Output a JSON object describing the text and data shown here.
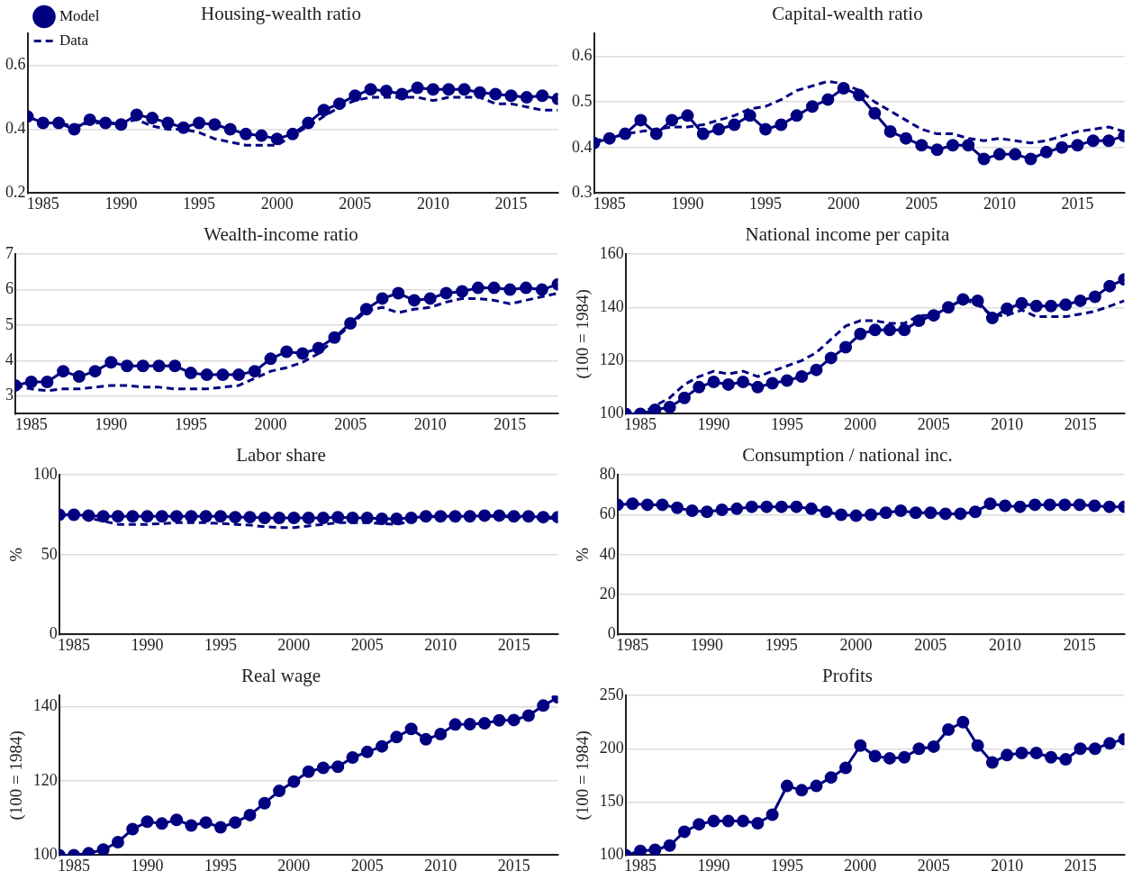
{
  "chart_data": [
    {
      "type": "line",
      "title": "Housing-wealth ratio",
      "x": [
        1984,
        1985,
        1986,
        1987,
        1988,
        1989,
        1990,
        1991,
        1992,
        1993,
        1994,
        1995,
        1996,
        1997,
        1998,
        1999,
        2000,
        2001,
        2002,
        2003,
        2004,
        2005,
        2006,
        2007,
        2008,
        2009,
        2010,
        2011,
        2012,
        2013,
        2014,
        2015,
        2016,
        2017,
        2018
      ],
      "xlim": [
        1984,
        2018
      ],
      "xticks": [
        1985,
        1990,
        1995,
        2000,
        2005,
        2010,
        2015
      ],
      "ylim": [
        0.2,
        0.7
      ],
      "yticks": [
        0.2,
        0.4,
        0.6
      ],
      "grid": "y",
      "legend": "top left",
      "series": [
        {
          "name": "Model",
          "color": "#000080",
          "marker": "circle",
          "line_style": "solid",
          "values": [
            0.44,
            0.42,
            0.42,
            0.4,
            0.43,
            0.42,
            0.415,
            0.445,
            0.435,
            0.42,
            0.405,
            0.42,
            0.415,
            0.4,
            0.385,
            0.38,
            0.37,
            0.385,
            0.42,
            0.46,
            0.48,
            0.505,
            0.525,
            0.52,
            0.51,
            0.53,
            0.525,
            0.525,
            0.525,
            0.515,
            0.51,
            0.505,
            0.5,
            0.505,
            0.495
          ]
        },
        {
          "name": "Data",
          "color": "#000080",
          "marker": "none",
          "line_style": "dashed",
          "values": [
            0.44,
            0.42,
            0.42,
            0.41,
            0.42,
            0.42,
            0.42,
            0.43,
            0.41,
            0.4,
            0.4,
            0.39,
            0.37,
            0.36,
            0.35,
            0.35,
            0.35,
            0.38,
            0.41,
            0.44,
            0.47,
            0.49,
            0.5,
            0.5,
            0.5,
            0.5,
            0.49,
            0.5,
            0.5,
            0.5,
            0.48,
            0.48,
            0.47,
            0.46,
            0.46
          ]
        }
      ]
    },
    {
      "type": "line",
      "title": "Capital-wealth ratio",
      "x": [
        1984,
        1985,
        1986,
        1987,
        1988,
        1989,
        1990,
        1991,
        1992,
        1993,
        1994,
        1995,
        1996,
        1997,
        1998,
        1999,
        2000,
        2001,
        2002,
        2003,
        2004,
        2005,
        2006,
        2007,
        2008,
        2009,
        2010,
        2011,
        2012,
        2013,
        2014,
        2015,
        2016,
        2017,
        2018
      ],
      "xlim": [
        1984,
        2018
      ],
      "xticks": [
        1985,
        1990,
        1995,
        2000,
        2005,
        2010,
        2015
      ],
      "ylim": [
        0.3,
        0.65
      ],
      "yticks": [
        0.3,
        0.4,
        0.5,
        0.6
      ],
      "grid": "y",
      "series": [
        {
          "color": "#000080",
          "marker": "circle",
          "line_style": "solid",
          "values": [
            0.41,
            0.42,
            0.43,
            0.46,
            0.43,
            0.46,
            0.47,
            0.43,
            0.44,
            0.45,
            0.47,
            0.44,
            0.45,
            0.47,
            0.49,
            0.505,
            0.53,
            0.515,
            0.475,
            0.435,
            0.42,
            0.405,
            0.395,
            0.405,
            0.405,
            0.375,
            0.385,
            0.385,
            0.375,
            0.39,
            0.4,
            0.405,
            0.415,
            0.415,
            0.425
          ]
        },
        {
          "color": "#000080",
          "marker": "none",
          "line_style": "dashed",
          "values": [
            0.415,
            0.42,
            0.43,
            0.435,
            0.44,
            0.445,
            0.445,
            0.45,
            0.46,
            0.47,
            0.485,
            0.49,
            0.505,
            0.525,
            0.535,
            0.545,
            0.54,
            0.525,
            0.5,
            0.48,
            0.46,
            0.44,
            0.43,
            0.43,
            0.42,
            0.415,
            0.42,
            0.415,
            0.41,
            0.415,
            0.425,
            0.435,
            0.44,
            0.445,
            0.435
          ]
        }
      ]
    },
    {
      "type": "line",
      "title": "Wealth-income ratio",
      "x": [
        1984,
        1985,
        1986,
        1987,
        1988,
        1989,
        1990,
        1991,
        1992,
        1993,
        1994,
        1995,
        1996,
        1997,
        1998,
        1999,
        2000,
        2001,
        2002,
        2003,
        2004,
        2005,
        2006,
        2007,
        2008,
        2009,
        2010,
        2011,
        2012,
        2013,
        2014,
        2015,
        2016,
        2017,
        2018
      ],
      "xlim": [
        1984,
        2018
      ],
      "xticks": [
        1985,
        1990,
        1995,
        2000,
        2005,
        2010,
        2015
      ],
      "ylim": [
        2.5,
        7
      ],
      "yticks": [
        3,
        4,
        5,
        6,
        7
      ],
      "grid": "y",
      "series": [
        {
          "color": "#000080",
          "marker": "circle",
          "line_style": "solid",
          "values": [
            3.3,
            3.4,
            3.4,
            3.7,
            3.55,
            3.7,
            3.95,
            3.85,
            3.85,
            3.85,
            3.85,
            3.65,
            3.6,
            3.6,
            3.6,
            3.7,
            4.05,
            4.25,
            4.2,
            4.35,
            4.65,
            5.05,
            5.45,
            5.75,
            5.9,
            5.7,
            5.75,
            5.9,
            5.95,
            6.05,
            6.05,
            6.0,
            6.05,
            6.0,
            6.15
          ]
        },
        {
          "color": "#000080",
          "marker": "none",
          "line_style": "dashed",
          "values": [
            3.3,
            3.2,
            3.15,
            3.2,
            3.2,
            3.25,
            3.3,
            3.3,
            3.25,
            3.25,
            3.2,
            3.2,
            3.2,
            3.25,
            3.3,
            3.5,
            3.7,
            3.8,
            3.95,
            4.2,
            4.6,
            5.0,
            5.4,
            5.5,
            5.35,
            5.45,
            5.5,
            5.65,
            5.75,
            5.75,
            5.7,
            5.6,
            5.7,
            5.8,
            5.9
          ]
        }
      ]
    },
    {
      "type": "line",
      "title": "National income per capita",
      "ylabel": "(100 = 1984)",
      "x": [
        1984,
        1985,
        1986,
        1987,
        1988,
        1989,
        1990,
        1991,
        1992,
        1993,
        1994,
        1995,
        1996,
        1997,
        1998,
        1999,
        2000,
        2001,
        2002,
        2003,
        2004,
        2005,
        2006,
        2007,
        2008,
        2009,
        2010,
        2011,
        2012,
        2013,
        2014,
        2015,
        2016,
        2017,
        2018
      ],
      "xlim": [
        1984,
        2018
      ],
      "xticks": [
        1985,
        1990,
        1995,
        2000,
        2005,
        2010,
        2015
      ],
      "ylim": [
        100,
        160
      ],
      "yticks": [
        100,
        120,
        140,
        160
      ],
      "grid": "y",
      "series": [
        {
          "color": "#000080",
          "marker": "circle",
          "line_style": "solid",
          "values": [
            100,
            100,
            101.5,
            102.5,
            106,
            110,
            112,
            111,
            112,
            110,
            111.5,
            112.5,
            114,
            116.5,
            121,
            125,
            130,
            131.5,
            131.5,
            131.5,
            135,
            137,
            140,
            143,
            142.5,
            136,
            139.5,
            141.5,
            140.5,
            140.5,
            141,
            142.5,
            144,
            148,
            150.5
          ]
        },
        {
          "color": "#000080",
          "marker": "none",
          "line_style": "dashed",
          "values": [
            100,
            100,
            103,
            106,
            111,
            114,
            116,
            115,
            116,
            114,
            116,
            118,
            120,
            123,
            128,
            133,
            135,
            135,
            134,
            134,
            137,
            137,
            140,
            143,
            141,
            137,
            137,
            139,
            136.5,
            136.5,
            136.5,
            137.5,
            138.5,
            140.5,
            142.5
          ]
        }
      ]
    },
    {
      "type": "line",
      "title": "Labor share",
      "ylabel": "%",
      "x": [
        1984,
        1985,
        1986,
        1987,
        1988,
        1989,
        1990,
        1991,
        1992,
        1993,
        1994,
        1995,
        1996,
        1997,
        1998,
        1999,
        2000,
        2001,
        2002,
        2003,
        2004,
        2005,
        2006,
        2007,
        2008,
        2009,
        2010,
        2011,
        2012,
        2013,
        2014,
        2015,
        2016,
        2017,
        2018
      ],
      "xlim": [
        1984,
        2018
      ],
      "xticks": [
        1985,
        1990,
        1995,
        2000,
        2005,
        2010,
        2015
      ],
      "ylim": [
        0,
        100
      ],
      "yticks": [
        0,
        50,
        100
      ],
      "grid": "y",
      "series": [
        {
          "color": "#000080",
          "marker": "circle",
          "line_style": "solid",
          "values": [
            75,
            75,
            74.5,
            74,
            74,
            74,
            74,
            74,
            74,
            74,
            74,
            74,
            73.5,
            73.5,
            73,
            73,
            73,
            73,
            73,
            73.5,
            73,
            73,
            72.5,
            72.5,
            73,
            74,
            74,
            74,
            74,
            74.5,
            74.5,
            74,
            74,
            73.5,
            73.5
          ]
        },
        {
          "color": "#000080",
          "marker": "none",
          "line_style": "dashed",
          "values": [
            75,
            74,
            73,
            71,
            69,
            69,
            69,
            69.5,
            70,
            70,
            70,
            69.5,
            69,
            68.5,
            67.5,
            67,
            67,
            68,
            69,
            70,
            70,
            70,
            69.5,
            69,
            71,
            73.5,
            74,
            74,
            74,
            74,
            74,
            73.5,
            73,
            72.5,
            73
          ]
        }
      ]
    },
    {
      "type": "line",
      "title": "Consumption / national inc.",
      "ylabel": "%",
      "x": [
        1984,
        1985,
        1986,
        1987,
        1988,
        1989,
        1990,
        1991,
        1992,
        1993,
        1994,
        1995,
        1996,
        1997,
        1998,
        1999,
        2000,
        2001,
        2002,
        2003,
        2004,
        2005,
        2006,
        2007,
        2008,
        2009,
        2010,
        2011,
        2012,
        2013,
        2014,
        2015,
        2016,
        2017,
        2018
      ],
      "xlim": [
        1984,
        2018
      ],
      "xticks": [
        1985,
        1990,
        1995,
        2000,
        2005,
        2010,
        2015
      ],
      "ylim": [
        0,
        80
      ],
      "yticks": [
        0,
        20,
        40,
        60,
        80
      ],
      "grid": "y",
      "series": [
        {
          "color": "#000080",
          "marker": "circle",
          "line_style": "solid",
          "values": [
            65,
            65.5,
            65,
            65,
            63.5,
            62,
            61.5,
            62.5,
            63,
            64,
            64,
            64,
            64,
            63,
            61.5,
            60,
            59.5,
            60,
            61,
            62,
            61,
            61,
            60.5,
            60.5,
            61.5,
            65.5,
            64.5,
            64,
            65,
            65,
            65,
            65,
            64.5,
            64,
            64
          ]
        }
      ]
    },
    {
      "type": "line",
      "title": "Real wage",
      "ylabel": "(100 = 1984)",
      "x": [
        1984,
        1985,
        1986,
        1987,
        1988,
        1989,
        1990,
        1991,
        1992,
        1993,
        1994,
        1995,
        1996,
        1997,
        1998,
        1999,
        2000,
        2001,
        2002,
        2003,
        2004,
        2005,
        2006,
        2007,
        2008,
        2009,
        2010,
        2011,
        2012,
        2013,
        2014,
        2015,
        2016,
        2017,
        2018
      ],
      "xlim": [
        1984,
        2018
      ],
      "xticks": [
        1985,
        1990,
        1995,
        2000,
        2005,
        2010,
        2015
      ],
      "ylim": [
        100,
        143
      ],
      "yticks": [
        100,
        120,
        140
      ],
      "grid": "y",
      "series": [
        {
          "color": "#000080",
          "marker": "circle",
          "line_style": "solid",
          "values": [
            100,
            100,
            100.5,
            101.5,
            103.5,
            107,
            109,
            108.5,
            109.5,
            108,
            108.8,
            107.5,
            108.8,
            110.8,
            114,
            117.3,
            119.8,
            122.5,
            123.5,
            123.8,
            126.3,
            127.8,
            129.3,
            131.8,
            134,
            131.2,
            132.6,
            135.2,
            135.3,
            135.5,
            136.3,
            136.4,
            137.6,
            140.3,
            142.5
          ]
        }
      ]
    },
    {
      "type": "line",
      "title": "Profits",
      "ylabel": "(100 = 1984)",
      "x": [
        1984,
        1985,
        1986,
        1987,
        1988,
        1989,
        1990,
        1991,
        1992,
        1993,
        1994,
        1995,
        1996,
        1997,
        1998,
        1999,
        2000,
        2001,
        2002,
        2003,
        2004,
        2005,
        2006,
        2007,
        2008,
        2009,
        2010,
        2011,
        2012,
        2013,
        2014,
        2015,
        2016,
        2017,
        2018
      ],
      "xlim": [
        1984,
        2018
      ],
      "xticks": [
        1985,
        1990,
        1995,
        2000,
        2005,
        2010,
        2015
      ],
      "ylim": [
        100,
        250
      ],
      "yticks": [
        100,
        150,
        200,
        250
      ],
      "grid": "y",
      "series": [
        {
          "color": "#000080",
          "marker": "circle",
          "line_style": "solid",
          "values": [
            100,
            104,
            105,
            109,
            122,
            129,
            132,
            132,
            132,
            130,
            138,
            165,
            161,
            165,
            173,
            182,
            203,
            193,
            191,
            192,
            200,
            202,
            218,
            225,
            203,
            187,
            194,
            196,
            196,
            192,
            190,
            200,
            200,
            205,
            209
          ]
        }
      ]
    }
  ]
}
